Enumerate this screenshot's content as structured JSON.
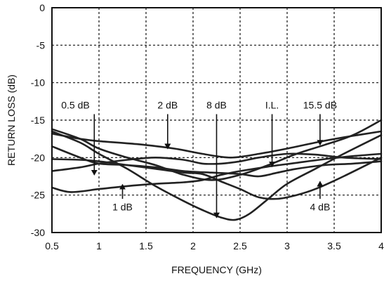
{
  "chart_data": {
    "type": "line",
    "title": "",
    "xlabel": "FREQUENCY (GHz)",
    "ylabel": "RETURN LOSS (dB)",
    "xlim": [
      0.5,
      4
    ],
    "ylim": [
      -30,
      0
    ],
    "xticks": [
      0.5,
      1,
      1.5,
      2,
      2.5,
      3,
      3.5,
      4
    ],
    "yticks": [
      0,
      -5,
      -10,
      -15,
      -20,
      -25,
      -30
    ],
    "grid": true,
    "grid_style": "dotted",
    "line_color": "#222222",
    "series": [
      {
        "x": [
          0.5,
          0.8,
          1.0,
          1.3,
          1.6,
          1.9,
          2.1,
          2.3,
          2.5,
          2.7,
          3.0,
          3.3,
          3.6,
          4.0
        ],
        "y": [
          -21.8,
          -21.3,
          -20.8,
          -20.3,
          -20.0,
          -20.3,
          -20.8,
          -20.8,
          -20.5,
          -20.0,
          -19.5,
          -19.6,
          -20.0,
          -20.2
        ]
      },
      {
        "x": [
          0.5,
          0.7,
          1.0,
          1.3,
          1.6,
          1.9,
          2.1,
          2.3,
          2.5,
          2.8,
          3.1,
          3.4,
          3.7,
          4.0
        ],
        "y": [
          -24.0,
          -24.6,
          -24.2,
          -23.8,
          -23.5,
          -23.3,
          -23.0,
          -22.3,
          -21.8,
          -21.2,
          -20.7,
          -20.2,
          -19.8,
          -19.5
        ]
      },
      {
        "x": [
          0.5,
          0.8,
          1.0,
          1.4,
          1.8,
          2.1,
          2.4,
          2.7,
          3.0,
          3.3,
          3.6,
          4.0
        ],
        "y": [
          -16.8,
          -17.5,
          -17.8,
          -18.2,
          -18.8,
          -19.5,
          -20.0,
          -19.5,
          -18.8,
          -18.0,
          -17.3,
          -16.5
        ]
      },
      {
        "x": [
          0.5,
          0.8,
          1.0,
          1.3,
          1.6,
          1.9,
          2.1,
          2.3,
          2.45,
          2.6,
          2.8,
          3.0,
          3.3,
          3.6,
          4.0
        ],
        "y": [
          -16.5,
          -18.0,
          -19.5,
          -21.5,
          -23.8,
          -25.8,
          -27.0,
          -28.0,
          -28.3,
          -27.5,
          -25.5,
          -23.5,
          -21.5,
          -19.5,
          -17.0
        ]
      },
      {
        "x": [
          0.5,
          0.8,
          1.0,
          1.3,
          1.6,
          1.9,
          2.2,
          2.5,
          2.7,
          2.9,
          3.1,
          3.4,
          3.7,
          4.0
        ],
        "y": [
          -18.5,
          -20.0,
          -20.8,
          -21.0,
          -21.3,
          -21.8,
          -22.0,
          -22.2,
          -22.5,
          -22.0,
          -21.5,
          -21.0,
          -20.8,
          -20.5
        ]
      },
      {
        "x": [
          0.5,
          0.8,
          1.0,
          1.3,
          1.6,
          1.9,
          2.2,
          2.5,
          2.8,
          3.1,
          3.4,
          3.7,
          4.0
        ],
        "y": [
          -16.2,
          -17.5,
          -18.8,
          -20.0,
          -21.0,
          -22.3,
          -23.0,
          -22.3,
          -21.0,
          -19.5,
          -18.3,
          -17.0,
          -15.0
        ]
      },
      {
        "x": [
          0.5,
          0.8,
          1.0,
          1.3,
          1.6,
          1.9,
          2.1,
          2.3,
          2.5,
          2.7,
          2.9,
          3.1,
          3.3,
          3.6,
          4.0
        ],
        "y": [
          -20.2,
          -20.3,
          -20.5,
          -21.0,
          -21.5,
          -22.0,
          -22.2,
          -23.2,
          -24.2,
          -25.3,
          -25.5,
          -25.0,
          -24.2,
          -22.5,
          -20.0
        ]
      }
    ],
    "annotations": [
      {
        "text": "0.5 dB",
        "x": 0.75,
        "y": -13.0,
        "arrow_from": [
          0.95,
          -14.2
        ],
        "arrow_to": [
          0.95,
          -22.3
        ]
      },
      {
        "text": "2 dB",
        "x": 1.73,
        "y": -13.0,
        "arrow_from": [
          1.73,
          -14.2
        ],
        "arrow_to": [
          1.73,
          -18.8
        ]
      },
      {
        "text": "8 dB",
        "x": 2.25,
        "y": -13.0,
        "arrow_from": [
          2.25,
          -14.2
        ],
        "arrow_to": [
          2.25,
          -28.0
        ]
      },
      {
        "text": "I.L.",
        "x": 2.84,
        "y": -13.0,
        "arrow_from": [
          2.84,
          -14.2
        ],
        "arrow_to": [
          2.84,
          -21.2
        ]
      },
      {
        "text": "15.5 dB",
        "x": 3.35,
        "y": -13.0,
        "arrow_from": [
          3.35,
          -14.2
        ],
        "arrow_to": [
          3.35,
          -18.3
        ]
      },
      {
        "text": "1 dB",
        "x": 1.25,
        "y": -26.6,
        "arrow_from": [
          1.25,
          -25.5
        ],
        "arrow_to": [
          1.25,
          -23.6
        ]
      },
      {
        "text": "4 dB",
        "x": 3.35,
        "y": -26.6,
        "arrow_from": [
          3.35,
          -25.5
        ],
        "arrow_to": [
          3.35,
          -23.2
        ]
      }
    ]
  }
}
